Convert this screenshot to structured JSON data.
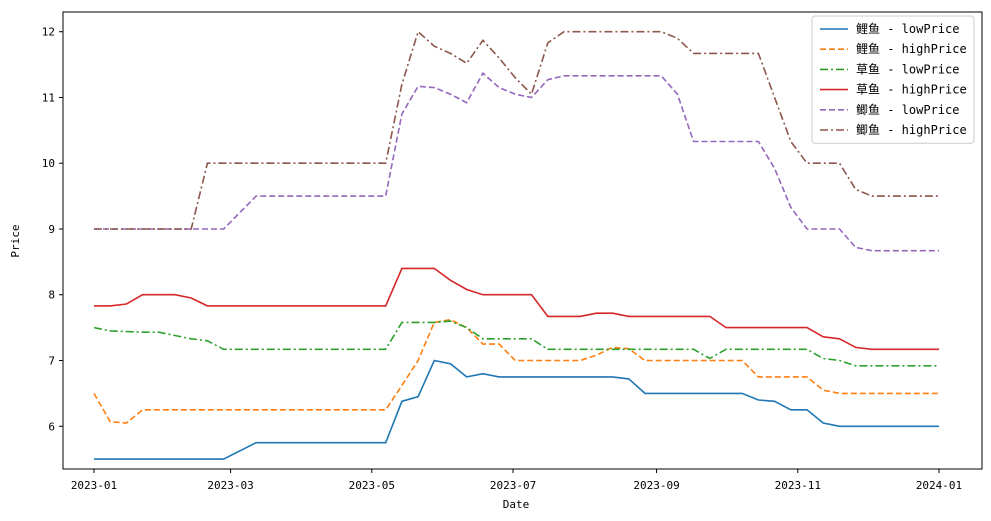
{
  "chart_data": {
    "type": "line",
    "xlabel": "Date",
    "ylabel": "Price",
    "xlim": [
      "2023-01-01",
      "2024-01-01"
    ],
    "ylim": [
      5.35,
      12.3
    ],
    "x_ticks": [
      "2023-01",
      "2023-03",
      "2023-05",
      "2023-07",
      "2023-09",
      "2023-11",
      "2024-01"
    ],
    "y_ticks": [
      6,
      7,
      8,
      9,
      10,
      11,
      12
    ],
    "legend_position": "top-right",
    "grid": false,
    "series": [
      {
        "name": "鲤鱼 - lowPrice",
        "color": "#1f77b4",
        "dash": "solid",
        "points": [
          [
            "2023-01-01",
            5.5
          ],
          [
            "2023-01-08",
            5.5
          ],
          [
            "2023-01-15",
            5.5
          ],
          [
            "2023-01-22",
            5.5
          ],
          [
            "2023-02-05",
            5.5
          ],
          [
            "2023-02-12",
            5.5
          ],
          [
            "2023-02-19",
            5.5
          ],
          [
            "2023-02-26",
            5.5
          ],
          [
            "2023-03-12",
            5.75
          ],
          [
            "2023-03-26",
            5.75
          ],
          [
            "2023-04-16",
            5.75
          ],
          [
            "2023-05-07",
            5.75
          ],
          [
            "2023-05-14",
            6.38
          ],
          [
            "2023-05-21",
            6.45
          ],
          [
            "2023-05-28",
            7.0
          ],
          [
            "2023-06-04",
            6.95
          ],
          [
            "2023-06-11",
            6.75
          ],
          [
            "2023-06-18",
            6.8
          ],
          [
            "2023-06-25",
            6.75
          ],
          [
            "2023-07-09",
            6.75
          ],
          [
            "2023-07-23",
            6.75
          ],
          [
            "2023-08-13",
            6.75
          ],
          [
            "2023-08-20",
            6.72
          ],
          [
            "2023-08-27",
            6.5
          ],
          [
            "2023-09-17",
            6.5
          ],
          [
            "2023-10-08",
            6.5
          ],
          [
            "2023-10-15",
            6.4
          ],
          [
            "2023-10-22",
            6.38
          ],
          [
            "2023-10-29",
            6.25
          ],
          [
            "2023-11-05",
            6.25
          ],
          [
            "2023-11-12",
            6.05
          ],
          [
            "2023-11-19",
            6.0
          ],
          [
            "2023-12-03",
            6.0
          ],
          [
            "2023-12-17",
            6.0
          ],
          [
            "2024-01-01",
            6.0
          ]
        ]
      },
      {
        "name": "鲤鱼 - highPrice",
        "color": "#ff7f0e",
        "dash": "dashed",
        "points": [
          [
            "2023-01-01",
            6.5
          ],
          [
            "2023-01-08",
            6.07
          ],
          [
            "2023-01-15",
            6.05
          ],
          [
            "2023-01-22",
            6.25
          ],
          [
            "2023-02-12",
            6.25
          ],
          [
            "2023-03-12",
            6.25
          ],
          [
            "2023-04-16",
            6.25
          ],
          [
            "2023-05-07",
            6.25
          ],
          [
            "2023-05-14",
            6.62
          ],
          [
            "2023-05-21",
            7.0
          ],
          [
            "2023-05-28",
            7.58
          ],
          [
            "2023-06-04",
            7.62
          ],
          [
            "2023-06-11",
            7.5
          ],
          [
            "2023-06-18",
            7.25
          ],
          [
            "2023-06-25",
            7.25
          ],
          [
            "2023-07-02",
            7.0
          ],
          [
            "2023-07-23",
            7.0
          ],
          [
            "2023-07-30",
            7.0
          ],
          [
            "2023-08-06",
            7.08
          ],
          [
            "2023-08-13",
            7.2
          ],
          [
            "2023-08-20",
            7.18
          ],
          [
            "2023-08-27",
            7.0
          ],
          [
            "2023-09-17",
            7.0
          ],
          [
            "2023-10-08",
            7.0
          ],
          [
            "2023-10-15",
            6.75
          ],
          [
            "2023-10-29",
            6.75
          ],
          [
            "2023-11-05",
            6.75
          ],
          [
            "2023-11-12",
            6.55
          ],
          [
            "2023-11-19",
            6.5
          ],
          [
            "2023-12-17",
            6.5
          ],
          [
            "2024-01-01",
            6.5
          ]
        ]
      },
      {
        "name": "草鱼 - lowPrice",
        "color": "#2ca02c",
        "dash": "dashdot",
        "points": [
          [
            "2023-01-01",
            7.5
          ],
          [
            "2023-01-08",
            7.45
          ],
          [
            "2023-01-22",
            7.43
          ],
          [
            "2023-01-29",
            7.43
          ],
          [
            "2023-02-05",
            7.38
          ],
          [
            "2023-02-12",
            7.33
          ],
          [
            "2023-02-19",
            7.3
          ],
          [
            "2023-02-26",
            7.17
          ],
          [
            "2023-03-26",
            7.17
          ],
          [
            "2023-04-16",
            7.17
          ],
          [
            "2023-05-07",
            7.17
          ],
          [
            "2023-05-14",
            7.58
          ],
          [
            "2023-05-28",
            7.58
          ],
          [
            "2023-06-04",
            7.6
          ],
          [
            "2023-06-11",
            7.5
          ],
          [
            "2023-06-18",
            7.33
          ],
          [
            "2023-07-09",
            7.33
          ],
          [
            "2023-07-16",
            7.17
          ],
          [
            "2023-08-13",
            7.17
          ],
          [
            "2023-09-10",
            7.17
          ],
          [
            "2023-09-17",
            7.17
          ],
          [
            "2023-09-24",
            7.03
          ],
          [
            "2023-10-01",
            7.17
          ],
          [
            "2023-10-15",
            7.17
          ],
          [
            "2023-10-29",
            7.17
          ],
          [
            "2023-11-05",
            7.17
          ],
          [
            "2023-11-12",
            7.03
          ],
          [
            "2023-11-19",
            7.0
          ],
          [
            "2023-11-26",
            6.92
          ],
          [
            "2023-12-17",
            6.92
          ],
          [
            "2024-01-01",
            6.92
          ]
        ]
      },
      {
        "name": "草鱼 - highPrice",
        "color": "#d62728",
        "dash": "solid",
        "points": [
          [
            "2023-01-01",
            7.83
          ],
          [
            "2023-01-08",
            7.83
          ],
          [
            "2023-01-15",
            7.86
          ],
          [
            "2023-01-22",
            8.0
          ],
          [
            "2023-02-05",
            8.0
          ],
          [
            "2023-02-12",
            7.95
          ],
          [
            "2023-02-19",
            7.83
          ],
          [
            "2023-03-12",
            7.83
          ],
          [
            "2023-04-16",
            7.83
          ],
          [
            "2023-05-07",
            7.83
          ],
          [
            "2023-05-14",
            8.4
          ],
          [
            "2023-05-28",
            8.4
          ],
          [
            "2023-06-04",
            8.22
          ],
          [
            "2023-06-11",
            8.08
          ],
          [
            "2023-06-18",
            8.0
          ],
          [
            "2023-07-09",
            8.0
          ],
          [
            "2023-07-16",
            7.67
          ],
          [
            "2023-07-30",
            7.67
          ],
          [
            "2023-08-06",
            7.72
          ],
          [
            "2023-08-13",
            7.72
          ],
          [
            "2023-08-20",
            7.67
          ],
          [
            "2023-09-24",
            7.67
          ],
          [
            "2023-10-01",
            7.5
          ],
          [
            "2023-10-15",
            7.5
          ],
          [
            "2023-11-05",
            7.5
          ],
          [
            "2023-11-12",
            7.36
          ],
          [
            "2023-11-19",
            7.33
          ],
          [
            "2023-11-26",
            7.2
          ],
          [
            "2023-12-03",
            7.17
          ],
          [
            "2023-12-17",
            7.17
          ],
          [
            "2024-01-01",
            7.17
          ]
        ]
      },
      {
        "name": "鲫鱼 - lowPrice",
        "color": "#9467bd",
        "dash": "dashed",
        "points": [
          [
            "2023-01-01",
            9.0
          ],
          [
            "2023-01-15",
            9.0
          ],
          [
            "2023-02-05",
            9.0
          ],
          [
            "2023-02-26",
            9.0
          ],
          [
            "2023-03-12",
            9.5
          ],
          [
            "2023-04-02",
            9.5
          ],
          [
            "2023-05-07",
            9.5
          ],
          [
            "2023-05-14",
            10.75
          ],
          [
            "2023-05-21",
            11.17
          ],
          [
            "2023-05-28",
            11.15
          ],
          [
            "2023-06-04",
            11.05
          ],
          [
            "2023-06-11",
            10.92
          ],
          [
            "2023-06-18",
            11.37
          ],
          [
            "2023-06-25",
            11.15
          ],
          [
            "2023-07-02",
            11.05
          ],
          [
            "2023-07-09",
            11.0
          ],
          [
            "2023-07-16",
            11.27
          ],
          [
            "2023-07-23",
            11.33
          ],
          [
            "2023-08-13",
            11.33
          ],
          [
            "2023-08-27",
            11.33
          ],
          [
            "2023-09-03",
            11.33
          ],
          [
            "2023-09-10",
            11.05
          ],
          [
            "2023-09-17",
            10.33
          ],
          [
            "2023-10-08",
            10.33
          ],
          [
            "2023-10-15",
            10.33
          ],
          [
            "2023-10-22",
            9.92
          ],
          [
            "2023-10-29",
            9.33
          ],
          [
            "2023-11-05",
            9.0
          ],
          [
            "2023-11-19",
            9.0
          ],
          [
            "2023-11-26",
            8.72
          ],
          [
            "2023-12-03",
            8.67
          ],
          [
            "2023-12-17",
            8.67
          ],
          [
            "2024-01-01",
            8.67
          ]
        ]
      },
      {
        "name": "鲫鱼 - highPrice",
        "color": "#8c564b",
        "dash": "dashdot",
        "points": [
          [
            "2023-01-01",
            9.0
          ],
          [
            "2023-01-22",
            9.0
          ],
          [
            "2023-02-12",
            9.0
          ],
          [
            "2023-02-19",
            10.0
          ],
          [
            "2023-03-12",
            10.0
          ],
          [
            "2023-04-02",
            10.0
          ],
          [
            "2023-05-07",
            10.0
          ],
          [
            "2023-05-14",
            11.2
          ],
          [
            "2023-05-21",
            12.0
          ],
          [
            "2023-05-28",
            11.78
          ],
          [
            "2023-06-04",
            11.67
          ],
          [
            "2023-06-11",
            11.52
          ],
          [
            "2023-06-18",
            11.87
          ],
          [
            "2023-06-25",
            11.6
          ],
          [
            "2023-07-02",
            11.3
          ],
          [
            "2023-07-09",
            11.05
          ],
          [
            "2023-07-16",
            11.83
          ],
          [
            "2023-07-23",
            12.0
          ],
          [
            "2023-08-13",
            12.0
          ],
          [
            "2023-09-03",
            12.0
          ],
          [
            "2023-09-10",
            11.9
          ],
          [
            "2023-09-17",
            11.67
          ],
          [
            "2023-10-08",
            11.67
          ],
          [
            "2023-10-15",
            11.67
          ],
          [
            "2023-10-22",
            11.0
          ],
          [
            "2023-10-29",
            10.33
          ],
          [
            "2023-11-05",
            10.0
          ],
          [
            "2023-11-19",
            10.0
          ],
          [
            "2023-11-26",
            9.6
          ],
          [
            "2023-12-03",
            9.5
          ],
          [
            "2023-12-17",
            9.5
          ],
          [
            "2024-01-01",
            9.5
          ]
        ]
      }
    ]
  }
}
